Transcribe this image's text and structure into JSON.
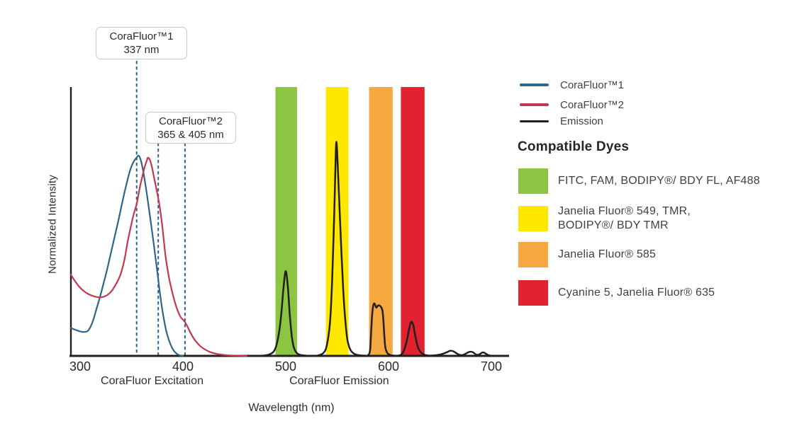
{
  "figure": {
    "ylabel": "Normalized Intensity",
    "xlabel": "Wavelength (nm)",
    "callouts": [
      {
        "line1": "CoraFluor™1",
        "line2": "337 nm"
      },
      {
        "line1": "CoraFluor™2",
        "line2": "365 & 405 nm"
      }
    ]
  },
  "legend": {
    "items": [
      {
        "label": "CoraFluor™1",
        "color": "#2E6589"
      },
      {
        "label": "CoraFluor™2",
        "color": "#C5374D"
      },
      {
        "label": "Emission",
        "color": "#231F20"
      }
    ]
  },
  "dyes": {
    "heading": "Compatible Dyes",
    "rows": [
      {
        "label": "FITC, FAM, BODIPY®/ BDY FL, AF488",
        "color": "#8CC541"
      },
      {
        "label": "Janelia Fluor® 549, TMR,\nBODIPY®/ BDY TMR",
        "color": "#FFE800"
      },
      {
        "label": "Janelia Fluor® 585",
        "color": "#F6A840"
      },
      {
        "label": "Cyanine 5, Janelia Fluor® 635",
        "color": "#E32230"
      }
    ]
  },
  "chart_data": {
    "type": "line",
    "xlabel": "Wavelength (nm)",
    "ylabel": "Normalized Intensity",
    "xlim": [
      291,
      717
    ],
    "ylim": [
      0,
      1
    ],
    "x_ticks": [
      300,
      400,
      500,
      600,
      700
    ],
    "grid": false,
    "legend_position": "right",
    "section_labels": [
      {
        "label": "CoraFluor Excitation",
        "center_nm": 370
      },
      {
        "label": "CoraFluor Emission",
        "center_nm": 552
      }
    ],
    "annotations": [
      {
        "text": "CoraFluor™1 337 nm",
        "marked_nm": [
          337
        ],
        "dash_nm_as_drawn": [
          355
        ]
      },
      {
        "text": "CoraFluor™2 365 & 405 nm",
        "marked_nm": [
          365,
          405
        ],
        "dash_nm_as_drawn": [
          376,
          402
        ]
      }
    ],
    "bands": [
      {
        "slug": "band-fitc-fam-bdyfl-af488",
        "dyes": "FITC, FAM, BODIPY®/ BDY FL, AF488",
        "color": "#8CC541",
        "from_nm": 490,
        "to_nm": 511
      },
      {
        "slug": "band-jf549-tmr-bdytmr",
        "dyes": "Janelia Fluor® 549, TMR, BODIPY®/ BDY TMR",
        "color": "#FFE800",
        "from_nm": 539,
        "to_nm": 561
      },
      {
        "slug": "band-jf585",
        "dyes": "Janelia Fluor® 585",
        "color": "#F6A840",
        "from_nm": 581,
        "to_nm": 604
      },
      {
        "slug": "band-cy5-jf635",
        "dyes": "Cyanine 5, Janelia Fluor® 635",
        "color": "#E32230",
        "from_nm": 612,
        "to_nm": 635
      }
    ],
    "series": [
      {
        "name": "CoraFluor™1",
        "slug": "corafluor1-excitation",
        "kind": "excitation",
        "color": "#2E6589",
        "width": 2.2,
        "points": [
          [
            291,
            0.104
          ],
          [
            296,
            0.096
          ],
          [
            300,
            0.091
          ],
          [
            304,
            0.089
          ],
          [
            308,
            0.095
          ],
          [
            312,
            0.125
          ],
          [
            315,
            0.163
          ],
          [
            319,
            0.215
          ],
          [
            322,
            0.258
          ],
          [
            325,
            0.302
          ],
          [
            328,
            0.35
          ],
          [
            331,
            0.4
          ],
          [
            334,
            0.45
          ],
          [
            337,
            0.5
          ],
          [
            340,
            0.553
          ],
          [
            343,
            0.605
          ],
          [
            346,
            0.653
          ],
          [
            349,
            0.695
          ],
          [
            352,
            0.722
          ],
          [
            355,
            0.738
          ],
          [
            357,
            0.745
          ],
          [
            359,
            0.728
          ],
          [
            361,
            0.695
          ],
          [
            363,
            0.65
          ],
          [
            366,
            0.573
          ],
          [
            369,
            0.49
          ],
          [
            372,
            0.405
          ],
          [
            375,
            0.315
          ],
          [
            377,
            0.253
          ],
          [
            379,
            0.195
          ],
          [
            381,
            0.147
          ],
          [
            383,
            0.107
          ],
          [
            385,
            0.075
          ],
          [
            388,
            0.042
          ],
          [
            391,
            0.02
          ],
          [
            394,
            0.008
          ],
          [
            397,
            0.002
          ],
          [
            400,
            0
          ]
        ]
      },
      {
        "name": "CoraFluor™2",
        "slug": "corafluor2-excitation",
        "kind": "excitation",
        "color": "#C5374D",
        "width": 2.2,
        "points": [
          [
            291,
            0.302
          ],
          [
            295,
            0.278
          ],
          [
            299,
            0.258
          ],
          [
            303,
            0.243
          ],
          [
            307,
            0.232
          ],
          [
            311,
            0.225
          ],
          [
            315,
            0.22
          ],
          [
            319,
            0.218
          ],
          [
            323,
            0.22
          ],
          [
            327,
            0.228
          ],
          [
            331,
            0.243
          ],
          [
            335,
            0.268
          ],
          [
            339,
            0.3
          ],
          [
            343,
            0.355
          ],
          [
            346,
            0.42
          ],
          [
            349,
            0.475
          ],
          [
            352,
            0.525
          ],
          [
            355,
            0.565
          ],
          [
            358,
            0.625
          ],
          [
            361,
            0.675
          ],
          [
            363,
            0.705
          ],
          [
            365,
            0.728
          ],
          [
            366,
            0.737
          ],
          [
            368,
            0.728
          ],
          [
            370,
            0.7
          ],
          [
            372,
            0.662
          ],
          [
            374,
            0.625
          ],
          [
            377,
            0.565
          ],
          [
            380,
            0.48
          ],
          [
            383,
            0.375
          ],
          [
            386,
            0.3
          ],
          [
            389,
            0.247
          ],
          [
            392,
            0.202
          ],
          [
            395,
            0.167
          ],
          [
            398,
            0.143
          ],
          [
            401,
            0.131
          ],
          [
            404,
            0.112
          ],
          [
            407,
            0.089
          ],
          [
            410,
            0.068
          ],
          [
            413,
            0.052
          ],
          [
            417,
            0.036
          ],
          [
            421,
            0.025
          ],
          [
            426,
            0.015
          ],
          [
            431,
            0.009
          ],
          [
            437,
            0.005
          ],
          [
            444,
            0.002
          ],
          [
            452,
            0.001
          ],
          [
            462,
            0
          ]
        ]
      },
      {
        "name": "Emission",
        "slug": "emission",
        "kind": "emission",
        "color": "#231F20",
        "width": 2.5,
        "points": [
          [
            468,
            0
          ],
          [
            476,
            0
          ],
          [
            483,
            0.004
          ],
          [
            488,
            0.015
          ],
          [
            491,
            0.04
          ],
          [
            494,
            0.1
          ],
          [
            496,
            0.17
          ],
          [
            498,
            0.26
          ],
          [
            500,
            0.315
          ],
          [
            502,
            0.26
          ],
          [
            504,
            0.15
          ],
          [
            506,
            0.07
          ],
          [
            508,
            0.03
          ],
          [
            511,
            0.01
          ],
          [
            515,
            0.003
          ],
          [
            520,
            0.001
          ],
          [
            526,
            0
          ],
          [
            532,
            0.002
          ],
          [
            537,
            0.012
          ],
          [
            540,
            0.04
          ],
          [
            543,
            0.12
          ],
          [
            545,
            0.27
          ],
          [
            547,
            0.5
          ],
          [
            548,
            0.65
          ],
          [
            549,
            0.787
          ],
          [
            550,
            0.76
          ],
          [
            552,
            0.58
          ],
          [
            554,
            0.4
          ],
          [
            556,
            0.24
          ],
          [
            558,
            0.13
          ],
          [
            560,
            0.06
          ],
          [
            563,
            0.022
          ],
          [
            567,
            0.007
          ],
          [
            572,
            0.002
          ],
          [
            577,
            0.001
          ],
          [
            580,
            0.002
          ],
          [
            582,
            0.02
          ],
          [
            583,
            0.08
          ],
          [
            584,
            0.15
          ],
          [
            585,
            0.185
          ],
          [
            586,
            0.195
          ],
          [
            587,
            0.19
          ],
          [
            588,
            0.18
          ],
          [
            589,
            0.183
          ],
          [
            590,
            0.188
          ],
          [
            592,
            0.185
          ],
          [
            594,
            0.17
          ],
          [
            595,
            0.13
          ],
          [
            596,
            0.07
          ],
          [
            597,
            0.03
          ],
          [
            599,
            0.01
          ],
          [
            602,
            0.003
          ],
          [
            606,
            0.001
          ],
          [
            609,
            0.001
          ],
          [
            612,
            0.004
          ],
          [
            615,
            0.02
          ],
          [
            618,
            0.06
          ],
          [
            620,
            0.1
          ],
          [
            622,
            0.126
          ],
          [
            624,
            0.115
          ],
          [
            626,
            0.075
          ],
          [
            628,
            0.04
          ],
          [
            630,
            0.02
          ],
          [
            633,
            0.008
          ],
          [
            636,
            0.003
          ],
          [
            640,
            0.001
          ],
          [
            645,
            0.002
          ],
          [
            649,
            0.004
          ],
          [
            653,
            0.008
          ],
          [
            657,
            0.014
          ],
          [
            660,
            0.019
          ],
          [
            663,
            0.017
          ],
          [
            666,
            0.01
          ],
          [
            669,
            0.004
          ],
          [
            672,
            0.003
          ],
          [
            675,
            0.008
          ],
          [
            678,
            0.014
          ],
          [
            681,
            0.015
          ],
          [
            683,
            0.011
          ],
          [
            685,
            0.005
          ],
          [
            687,
            0.004
          ],
          [
            689,
            0.007
          ],
          [
            691,
            0.012
          ],
          [
            693,
            0.012
          ],
          [
            695,
            0.007
          ],
          [
            697,
            0.003
          ],
          [
            699,
            0.001
          ],
          [
            701,
            0
          ]
        ]
      }
    ]
  }
}
